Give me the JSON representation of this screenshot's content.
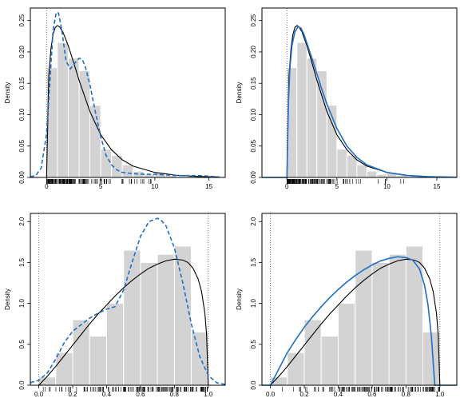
{
  "chart_data": [
    {
      "type": "bar",
      "panel": "top-left",
      "ylabel": "Density",
      "xlim": [
        -1.5,
        16.5
      ],
      "ylim": [
        0,
        0.27
      ],
      "xticks": [
        0,
        5,
        10,
        15
      ],
      "xtick_labels": [
        "0",
        "5",
        "10",
        "15"
      ],
      "yticks": [
        0,
        0.05,
        0.1,
        0.15,
        0.2,
        0.25
      ],
      "ytick_labels": [
        "0.00",
        "0.05",
        "0.10",
        "0.15",
        "0.20",
        "0.25"
      ],
      "vlines": [
        0
      ],
      "hist": {
        "edges": [
          0,
          1,
          2,
          3,
          4,
          5,
          6,
          7,
          8,
          9,
          10,
          11,
          12,
          13,
          14,
          15
        ],
        "values": [
          0.175,
          0.215,
          0.19,
          0.17,
          0.115,
          0.045,
          0.035,
          0.02,
          0.01,
          0.005,
          0.008,
          0.003,
          0.001,
          0.002,
          0.002
        ]
      },
      "series": [
        {
          "style": "solid",
          "color": "#000000",
          "x": [
            0,
            0.2,
            0.4,
            0.6,
            0.8,
            1.0,
            1.2,
            1.5,
            2,
            2.5,
            3,
            4,
            5,
            6,
            7,
            8,
            10,
            12,
            14,
            16
          ],
          "y": [
            0,
            0.16,
            0.205,
            0.228,
            0.239,
            0.242,
            0.24,
            0.232,
            0.21,
            0.183,
            0.155,
            0.105,
            0.068,
            0.044,
            0.028,
            0.018,
            0.008,
            0.0035,
            0.0015,
            0.0007
          ]
        },
        {
          "style": "dashed",
          "color": "#1f6fc5",
          "x": [
            -1.5,
            -1,
            -0.5,
            0,
            0.3,
            0.6,
            0.9,
            1.1,
            1.4,
            1.8,
            2.2,
            2.6,
            3.0,
            3.3,
            3.6,
            4,
            4.5,
            5,
            5.5,
            6,
            6.5,
            7,
            8,
            9,
            10,
            11,
            12,
            13,
            14,
            15,
            16
          ],
          "y": [
            0.001,
            0.003,
            0.015,
            0.07,
            0.15,
            0.235,
            0.263,
            0.262,
            0.235,
            0.185,
            0.173,
            0.182,
            0.19,
            0.188,
            0.175,
            0.148,
            0.105,
            0.065,
            0.035,
            0.02,
            0.012,
            0.008,
            0.006,
            0.005,
            0.005,
            0.004,
            0.003,
            0.003,
            0.003,
            0.002,
            0.0005
          ]
        }
      ]
    },
    {
      "type": "bar",
      "panel": "top-right",
      "ylabel": "Density",
      "xlim": [
        -2.5,
        17.0
      ],
      "ylim": [
        0,
        0.27
      ],
      "xticks": [
        0,
        5,
        10,
        15
      ],
      "xtick_labels": [
        "0",
        "5",
        "10",
        "15"
      ],
      "yticks": [
        0,
        0.05,
        0.1,
        0.15,
        0.2,
        0.25
      ],
      "ytick_labels": [
        "0.00",
        "0.05",
        "0.10",
        "0.15",
        "0.20",
        "0.25"
      ],
      "vlines": [
        0
      ],
      "hist": {
        "edges": [
          0,
          1,
          2,
          3,
          4,
          5,
          6,
          7,
          8,
          9,
          10,
          11,
          12,
          13,
          14,
          15
        ],
        "values": [
          0.175,
          0.215,
          0.19,
          0.17,
          0.115,
          0.045,
          0.035,
          0.02,
          0.01,
          0.005,
          0.008,
          0.003,
          0.001,
          0.002,
          0.002
        ]
      },
      "series": [
        {
          "style": "solid",
          "color": "#000000",
          "x": [
            -2.5,
            0,
            0.2,
            0.4,
            0.6,
            0.8,
            1.0,
            1.2,
            1.5,
            2,
            2.5,
            3,
            4,
            5,
            6,
            7,
            8,
            10,
            12,
            14,
            16,
            17
          ],
          "y": [
            0,
            0,
            0.16,
            0.205,
            0.228,
            0.239,
            0.242,
            0.24,
            0.232,
            0.21,
            0.183,
            0.155,
            0.105,
            0.068,
            0.044,
            0.028,
            0.018,
            0.008,
            0.0035,
            0.0015,
            0.0007,
            0.0005
          ]
        },
        {
          "style": "solid",
          "color": "#1f6fc5",
          "x": [
            -2.5,
            0,
            0.15,
            0.3,
            0.5,
            0.8,
            1.1,
            1.4,
            1.7,
            2,
            2.5,
            3,
            3.5,
            4,
            5,
            6,
            7,
            8,
            10,
            12,
            14,
            16,
            17
          ],
          "y": [
            0,
            0,
            0.12,
            0.175,
            0.21,
            0.232,
            0.24,
            0.238,
            0.228,
            0.214,
            0.19,
            0.165,
            0.14,
            0.117,
            0.078,
            0.05,
            0.032,
            0.02,
            0.008,
            0.003,
            0.0012,
            0.0005,
            0.0003
          ]
        }
      ]
    },
    {
      "type": "bar",
      "panel": "bottom-left",
      "ylabel": "Density",
      "xlim": [
        -0.05,
        1.1
      ],
      "ylim": [
        0,
        2.1
      ],
      "xticks": [
        0,
        0.2,
        0.4,
        0.6,
        0.8,
        1.0
      ],
      "xtick_labels": [
        "0.0",
        "0.2",
        "0.4",
        "0.6",
        "0.8",
        "1.0"
      ],
      "yticks": [
        0,
        0.5,
        1.0,
        1.5,
        2.0
      ],
      "ytick_labels": [
        "0.0",
        "0.5",
        "1.0",
        "1.5",
        "2.0"
      ],
      "vlines": [
        0,
        1
      ],
      "hist": {
        "edges": [
          0,
          0.1,
          0.2,
          0.3,
          0.4,
          0.5,
          0.6,
          0.7,
          0.8,
          0.9,
          1.0
        ],
        "values": [
          0.1,
          0.4,
          0.8,
          0.6,
          1.0,
          1.65,
          1.5,
          1.6,
          1.7,
          0.65
        ]
      },
      "series": [
        {
          "style": "solid",
          "color": "#000000",
          "x": [
            0,
            0.05,
            0.1,
            0.15,
            0.2,
            0.25,
            0.3,
            0.35,
            0.4,
            0.45,
            0.5,
            0.55,
            0.6,
            0.65,
            0.7,
            0.75,
            0.8,
            0.85,
            0.88,
            0.91,
            0.94,
            0.96,
            0.98,
            0.99,
            1.0
          ],
          "y": [
            0,
            0.11,
            0.23,
            0.36,
            0.49,
            0.62,
            0.75,
            0.87,
            0.98,
            1.09,
            1.19,
            1.28,
            1.36,
            1.43,
            1.48,
            1.52,
            1.54,
            1.53,
            1.5,
            1.43,
            1.3,
            1.15,
            0.88,
            0.62,
            0
          ]
        },
        {
          "style": "dashed",
          "color": "#1f6fc5",
          "x": [
            -0.05,
            0,
            0.05,
            0.1,
            0.15,
            0.2,
            0.25,
            0.3,
            0.35,
            0.4,
            0.45,
            0.5,
            0.55,
            0.6,
            0.65,
            0.7,
            0.72,
            0.75,
            0.8,
            0.85,
            0.9,
            0.95,
            1.0,
            1.05,
            1.1
          ],
          "y": [
            0.03,
            0.06,
            0.15,
            0.32,
            0.52,
            0.66,
            0.74,
            0.82,
            0.88,
            0.93,
            0.96,
            1.16,
            1.5,
            1.82,
            2.0,
            2.04,
            2.02,
            1.95,
            1.68,
            1.25,
            0.75,
            0.35,
            0.12,
            0.03,
            0.01
          ]
        }
      ]
    },
    {
      "type": "bar",
      "panel": "bottom-right",
      "ylabel": "Density",
      "xlim": [
        -0.05,
        1.1
      ],
      "ylim": [
        0,
        2.1
      ],
      "xticks": [
        0,
        0.2,
        0.4,
        0.6,
        0.8,
        1.0
      ],
      "xtick_labels": [
        "0.0",
        "0.2",
        "0.4",
        "0.6",
        "0.8",
        "1.0"
      ],
      "yticks": [
        0,
        0.5,
        1.0,
        1.5,
        2.0
      ],
      "ytick_labels": [
        "0.0",
        "0.5",
        "1.0",
        "1.5",
        "2.0"
      ],
      "vlines": [
        0,
        1
      ],
      "hist": {
        "edges": [
          0,
          0.1,
          0.2,
          0.3,
          0.4,
          0.5,
          0.6,
          0.7,
          0.8,
          0.9,
          1.0
        ],
        "values": [
          0.1,
          0.4,
          0.8,
          0.6,
          1.0,
          1.65,
          1.5,
          1.6,
          1.7,
          0.65
        ]
      },
      "series": [
        {
          "style": "solid",
          "color": "#000000",
          "x": [
            -0.05,
            0,
            0.05,
            0.1,
            0.15,
            0.2,
            0.25,
            0.3,
            0.35,
            0.4,
            0.45,
            0.5,
            0.55,
            0.6,
            0.65,
            0.7,
            0.75,
            0.8,
            0.85,
            0.88,
            0.91,
            0.94,
            0.96,
            0.98,
            0.99,
            1.0,
            1.1
          ],
          "y": [
            0,
            0,
            0.11,
            0.23,
            0.36,
            0.49,
            0.62,
            0.75,
            0.87,
            0.98,
            1.09,
            1.19,
            1.28,
            1.36,
            1.43,
            1.48,
            1.52,
            1.54,
            1.53,
            1.5,
            1.43,
            1.3,
            1.15,
            0.88,
            0.62,
            0,
            0
          ]
        },
        {
          "style": "solid",
          "color": "#1f6fc5",
          "x": [
            -0.05,
            0,
            0.02,
            0.05,
            0.1,
            0.15,
            0.2,
            0.25,
            0.3,
            0.35,
            0.4,
            0.45,
            0.5,
            0.55,
            0.6,
            0.65,
            0.7,
            0.75,
            0.8,
            0.84,
            0.88,
            0.91,
            0.93,
            0.95,
            0.96,
            0.97,
            1.1
          ],
          "y": [
            0,
            0,
            0.08,
            0.2,
            0.4,
            0.56,
            0.71,
            0.84,
            0.96,
            1.07,
            1.17,
            1.26,
            1.34,
            1.41,
            1.47,
            1.52,
            1.55,
            1.57,
            1.56,
            1.53,
            1.42,
            1.22,
            0.98,
            0.6,
            0.3,
            0,
            0
          ]
        }
      ]
    }
  ]
}
